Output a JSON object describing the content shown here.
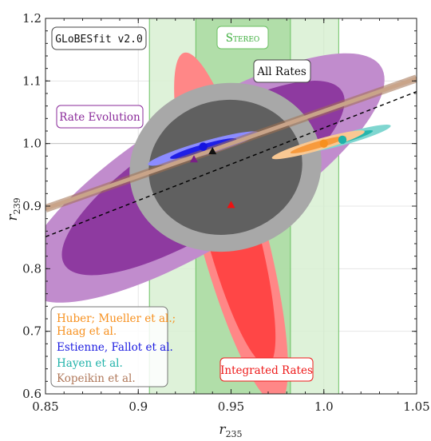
{
  "chart_data": {
    "type": "scatter",
    "xlabel": "r",
    "xlabel_sub": "235",
    "ylabel": "r",
    "ylabel_sub": "239",
    "xlim": [
      0.85,
      1.05
    ],
    "ylim": [
      0.6,
      1.2
    ],
    "x_ticks": [
      0.85,
      0.9,
      0.95,
      1.0,
      1.05
    ],
    "x_tick_labels": [
      "0.85",
      "0.9",
      "0.95",
      "1.0",
      "1.05"
    ],
    "y_ticks": [
      0.6,
      0.7,
      0.8,
      0.9,
      1.0,
      1.1,
      1.2
    ],
    "y_tick_labels": [
      "0.6",
      "0.7",
      "0.8",
      "0.9",
      "1.0",
      "1.1",
      "1.2"
    ],
    "grid": true,
    "reference_lines": {
      "x": 1.0,
      "y": 1.0
    },
    "bands": [
      {
        "name": "Stereo",
        "outer": [
          0.906,
          1.008
        ],
        "inner": [
          0.931,
          0.982
        ],
        "color_outer": "#d8f0d2",
        "color_inner": "#a9dba0",
        "edge": "#6cc063"
      }
    ],
    "regions": [
      {
        "name": "Integrated Rates",
        "center": [
          0.95,
          0.865
        ],
        "semi_axes": [
          0.018,
          0.29
        ],
        "rotation_deg": -15,
        "inner_scale": 0.78,
        "outer_color": "#ff8787",
        "inner_color": "#ff4646"
      },
      {
        "name": "Rate Evolution",
        "center": [
          0.935,
          0.945
        ],
        "semi_axes": [
          0.113,
          0.106
        ],
        "rotation_deg": -32,
        "inner_scale": 0.78,
        "outer_color": "#c18ccd",
        "inner_color": "#8e3aa0"
      },
      {
        "name": "All Rates",
        "center": [
          0.947,
          0.962
        ],
        "semi_axes": [
          0.052,
          0.134
        ],
        "rotation_deg": -12,
        "inner_scale": 0.8,
        "outer_color": "#a8a8a8",
        "inner_color": "#606060"
      },
      {
        "name": "Estienne, Fallot et al.",
        "center": [
          0.935,
          0.992
        ],
        "semi_axes": [
          0.031,
          0.011
        ],
        "rotation_deg": -16,
        "inner_scale": 0.6,
        "outer_color": "#8c8cff",
        "inner_color": "#1f1fe6"
      },
      {
        "name": "Hayen et al.",
        "center": [
          1.012,
          1.008
        ],
        "semi_axes": [
          0.025,
          0.009
        ],
        "rotation_deg": -16,
        "inner_scale": 0.6,
        "outer_color": "#7fd6d0",
        "inner_color": "#26b6ad"
      },
      {
        "name": "Huber; Mueller et al.; Haag et al.",
        "center": [
          0.997,
          0.998
        ],
        "semi_axes": [
          0.026,
          0.009
        ],
        "rotation_deg": -16,
        "inner_scale": 0.6,
        "outer_color": "#f9c893",
        "inner_color": "#f79a3d"
      }
    ],
    "lines": [
      {
        "name": "Kopeikin et al.",
        "from": [
          0.85,
          0.896
        ],
        "to": [
          1.05,
          1.104
        ],
        "color": "#c9a489",
        "style": "band"
      },
      {
        "name": "dashed",
        "from": [
          0.85,
          0.851
        ],
        "to": [
          1.05,
          1.083
        ],
        "color": "#000000",
        "style": "dashed"
      }
    ],
    "points": [
      {
        "x": 0.935,
        "y": 0.995,
        "marker": "circle",
        "color": "#1414e0"
      },
      {
        "x": 0.94,
        "y": 0.988,
        "marker": "triangle",
        "color": "#111111"
      },
      {
        "x": 0.93,
        "y": 0.975,
        "marker": "triangle",
        "color": "#7a1f86"
      },
      {
        "x": 0.95,
        "y": 0.902,
        "marker": "triangle",
        "color": "#ee1111"
      },
      {
        "x": 1.0,
        "y": 1.0,
        "marker": "circle",
        "color": "#f7901e"
      },
      {
        "x": 1.01,
        "y": 1.006,
        "marker": "circle",
        "color": "#1fb2a9"
      }
    ]
  },
  "labels": {
    "globes": "GLoBESfit v2.0",
    "stereo": "Stereo",
    "all_rates": "All Rates",
    "rate_evolution": "Rate Evolution",
    "integrated_rates": "Integrated Rates"
  },
  "legend": [
    {
      "text": "Huber; Mueller et al.;",
      "color": "#f7901e"
    },
    {
      "text": "Haag et al.",
      "color": "#f7901e"
    },
    {
      "text": "Estienne, Fallot et al.",
      "color": "#1a1ae0"
    },
    {
      "text": "Hayen et al.",
      "color": "#1fb2a9"
    },
    {
      "text": "Kopeikin et al.",
      "color": "#b0785a"
    }
  ],
  "colors": {
    "stereo_text": "#3cae3c",
    "rate_evolution_text": "#8a2a9a",
    "integrated_text": "#ee1a1a"
  }
}
